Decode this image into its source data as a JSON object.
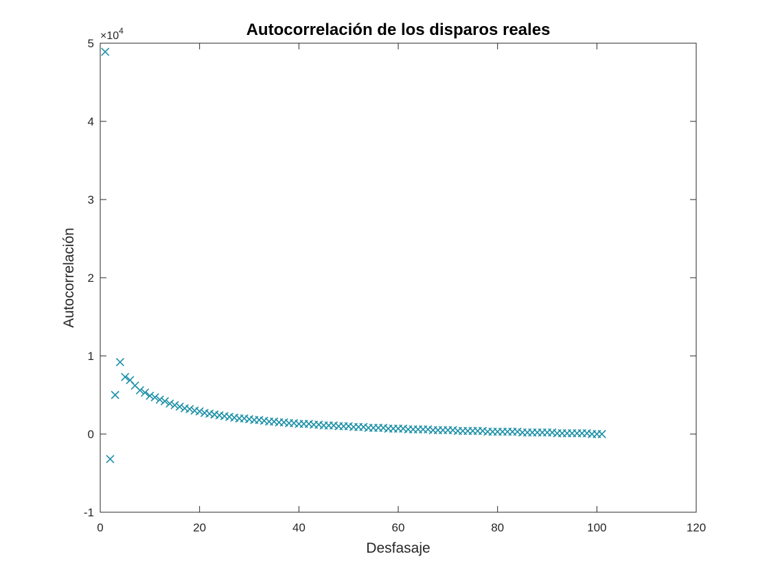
{
  "chart_data": {
    "type": "scatter",
    "title": "Autocorrelación de los disparos reales",
    "xlabel": "Desfasaje",
    "ylabel": "Autocorrelación",
    "xlim": [
      0,
      120
    ],
    "ylim": [
      -1,
      5
    ],
    "x_ticks": [
      0,
      20,
      40,
      60,
      80,
      100,
      120
    ],
    "y_ticks": [
      -1,
      0,
      1,
      2,
      3,
      4,
      5
    ],
    "y_multiplier_label": "×10",
    "y_multiplier_exponent": "4",
    "y_scale_factor": 10000,
    "grid": false,
    "marker": "x",
    "marker_color": "#1a8fa6",
    "series": [
      {
        "x": [
          1,
          2,
          3,
          4,
          5,
          6,
          7,
          8,
          9,
          10,
          11,
          12,
          13,
          14,
          15,
          16,
          17,
          18,
          19,
          20,
          21,
          22,
          23,
          24,
          25,
          26,
          27,
          28,
          29,
          30,
          31,
          32,
          33,
          34,
          35,
          36,
          37,
          38,
          39,
          40,
          41,
          42,
          43,
          44,
          45,
          46,
          47,
          48,
          49,
          50,
          51,
          52,
          53,
          54,
          55,
          56,
          57,
          58,
          59,
          60,
          61,
          62,
          63,
          64,
          65,
          66,
          67,
          68,
          69,
          70,
          71,
          72,
          73,
          74,
          75,
          76,
          77,
          78,
          79,
          80,
          81,
          82,
          83,
          84,
          85,
          86,
          87,
          88,
          89,
          90,
          91,
          92,
          93,
          94,
          95,
          96,
          97,
          98,
          99,
          100,
          101
        ],
        "y": [
          4.89,
          -0.32,
          0.5,
          0.92,
          0.73,
          0.69,
          0.62,
          0.56,
          0.53,
          0.49,
          0.47,
          0.44,
          0.42,
          0.39,
          0.37,
          0.35,
          0.33,
          0.32,
          0.3,
          0.29,
          0.27,
          0.26,
          0.25,
          0.24,
          0.23,
          0.22,
          0.21,
          0.2,
          0.2,
          0.19,
          0.18,
          0.18,
          0.17,
          0.16,
          0.16,
          0.15,
          0.15,
          0.14,
          0.14,
          0.13,
          0.13,
          0.13,
          0.12,
          0.12,
          0.11,
          0.11,
          0.11,
          0.1,
          0.1,
          0.1,
          0.09,
          0.09,
          0.09,
          0.08,
          0.08,
          0.08,
          0.08,
          0.07,
          0.07,
          0.07,
          0.07,
          0.06,
          0.06,
          0.06,
          0.06,
          0.06,
          0.05,
          0.05,
          0.05,
          0.05,
          0.05,
          0.04,
          0.04,
          0.04,
          0.04,
          0.04,
          0.04,
          0.03,
          0.03,
          0.03,
          0.03,
          0.03,
          0.03,
          0.03,
          0.02,
          0.02,
          0.02,
          0.02,
          0.02,
          0.02,
          0.02,
          0.01,
          0.01,
          0.01,
          0.01,
          0.01,
          0.01,
          0.01,
          0.0,
          0.0,
          0.0
        ]
      }
    ]
  }
}
